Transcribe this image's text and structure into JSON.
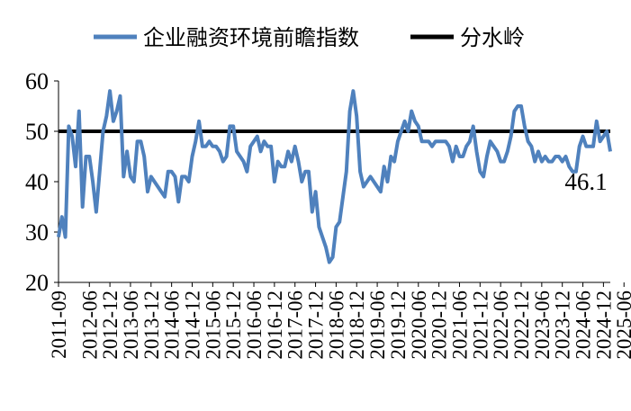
{
  "chart_data": {
    "type": "line",
    "ylim": [
      20,
      60
    ],
    "yticks": [
      "20",
      "30",
      "40",
      "50",
      "60"
    ],
    "xticks": [
      "2011-09",
      "2012-06",
      "2012-12",
      "2013-06",
      "2013-12",
      "2014-06",
      "2014-12",
      "2015-06",
      "2015-12",
      "2016-06",
      "2016-12",
      "2017-06",
      "2017-12",
      "2018-06",
      "2018-12",
      "2019-06",
      "2019-12",
      "2020-06",
      "2020-12",
      "2021-06",
      "2021-12",
      "2022-06",
      "2022-12",
      "2023-06",
      "2023-12",
      "2024-06",
      "2024-12",
      "2025-06"
    ],
    "x_start": "2011-09",
    "grid": false,
    "legend_position": "top",
    "series": [
      {
        "name": "企业融资环境前瞻指数",
        "color": "#4f81bd",
        "values": [
          29,
          33,
          29,
          51,
          49,
          43,
          54,
          35,
          45,
          45,
          40,
          34,
          42,
          50,
          53,
          58,
          52,
          54,
          57,
          41,
          46,
          41,
          40,
          48,
          48,
          45,
          38,
          41,
          40,
          39,
          38,
          37,
          42,
          42,
          41,
          36,
          41,
          41,
          40,
          45,
          48,
          52,
          47,
          47,
          48,
          47,
          47,
          46,
          44,
          45,
          51,
          51,
          46,
          45,
          44,
          42,
          47,
          48,
          49,
          46,
          48,
          47,
          47,
          40,
          44,
          43,
          43,
          46,
          44,
          47,
          44,
          40,
          42,
          42,
          34,
          38,
          31,
          29,
          27,
          24,
          25,
          31,
          32,
          37,
          42,
          54,
          58,
          53,
          42,
          39,
          40,
          41,
          40,
          39,
          38,
          43,
          40,
          45,
          44,
          48,
          50,
          52,
          50,
          54,
          52,
          51,
          48,
          48,
          48,
          47,
          48,
          48,
          48,
          48,
          47,
          44,
          47,
          45,
          45,
          47,
          48,
          51,
          46,
          42,
          41,
          45,
          48,
          47,
          46,
          44,
          44,
          46,
          49,
          54,
          55,
          55,
          51,
          48,
          47,
          44,
          46,
          44,
          45,
          44,
          44,
          45,
          45,
          44,
          45,
          43,
          42,
          42,
          47,
          49,
          47,
          47,
          47,
          52,
          48,
          49,
          50,
          46
        ]
      },
      {
        "name": "分水岭",
        "color": "#000000",
        "values": [
          50,
          50
        ]
      }
    ],
    "annotations": [
      {
        "text": "46.1"
      }
    ]
  }
}
